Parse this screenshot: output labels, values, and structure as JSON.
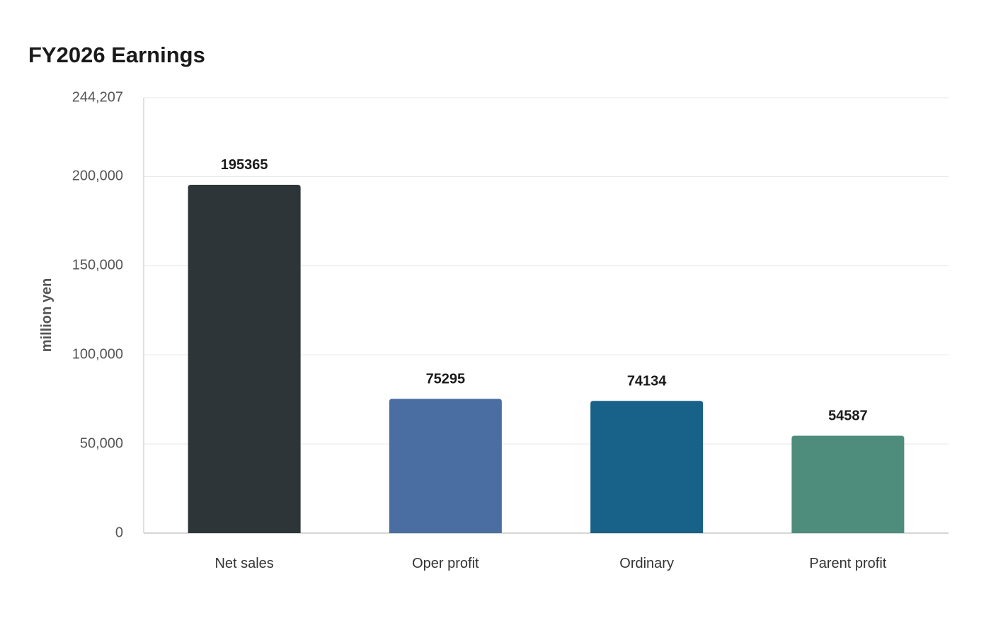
{
  "chart_data": {
    "type": "bar",
    "title": "FY2026 Earnings",
    "xlabel": "",
    "ylabel": "million yen",
    "categories": [
      "Net sales",
      "Oper profit",
      "Ordinary",
      "Parent profit"
    ],
    "values": [
      195365,
      75295,
      74134,
      54587
    ],
    "value_labels": [
      "195365",
      "75295",
      "74134",
      "54587"
    ],
    "colors": [
      "#2d3538",
      "#4a6ea2",
      "#186188",
      "#4e8c7b"
    ],
    "ylim": [
      0,
      244207
    ],
    "yticks": [
      0,
      50000,
      100000,
      150000,
      200000,
      244207
    ],
    "ytick_labels": [
      "0",
      "50,000",
      "100,000",
      "150,000",
      "200,000",
      "244,207"
    ],
    "grid": true,
    "legend": "none"
  }
}
